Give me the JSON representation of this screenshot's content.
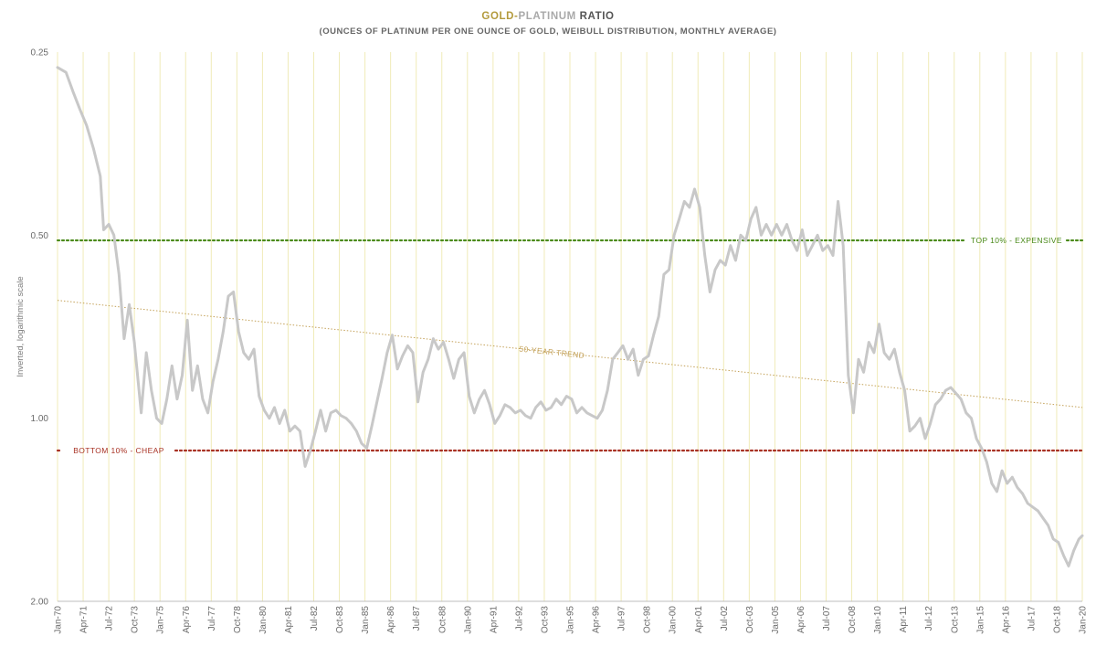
{
  "title": {
    "part1": "GOLD-",
    "part2": "PLATINUM",
    "part3": " RATIO"
  },
  "subtitle": "(OUNCES OF PLATINUM PER ONE OUNCE OF GOLD, WEIBULL DISTRIBUTION, MONTHLY AVERAGE)",
  "colors": {
    "gold": "#b39a3c",
    "platinum": "#a9a9a9",
    "ratio": "#555555",
    "series": "#c8c8c8",
    "top": "#4a8a1a",
    "bottom": "#a83224",
    "trend": "#c4a25a",
    "grid": "#f0ebb8"
  },
  "chart_data": {
    "type": "line",
    "ylabel": "Inverted, logarithmic scale",
    "y_scale": "log",
    "y_inverted": true,
    "ylim": [
      0.25,
      2.0
    ],
    "yticks": [
      0.25,
      0.5,
      1.0,
      2.0
    ],
    "ytick_labels": [
      "0.25",
      "0.50",
      "1.00",
      "2.00"
    ],
    "xlim": [
      "1970-01",
      "2020-01"
    ],
    "xtick_labels": [
      "Jan-70",
      "Apr-71",
      "Jul-72",
      "Oct-73",
      "Jan-75",
      "Apr-76",
      "Jul-77",
      "Oct-78",
      "Jan-80",
      "Apr-81",
      "Jul-82",
      "Oct-83",
      "Jan-85",
      "Apr-86",
      "Jul-87",
      "Oct-88",
      "Jan-90",
      "Apr-91",
      "Jul-92",
      "Oct-93",
      "Jan-95",
      "Apr-96",
      "Jul-97",
      "Oct-98",
      "Jan-00",
      "Apr-01",
      "Jul-02",
      "Oct-03",
      "Jan-05",
      "Apr-06",
      "Jul-07",
      "Oct-08",
      "Jan-10",
      "Apr-11",
      "Jul-12",
      "Oct-13",
      "Jan-15",
      "Apr-16",
      "Jul-17",
      "Oct-18",
      "Jan-20"
    ],
    "grid": "vertical",
    "series": [
      {
        "points": [
          [
            "1970-01",
            0.265
          ],
          [
            "1970-06",
            0.27
          ],
          [
            "1970-10",
            0.29
          ],
          [
            "1971-02",
            0.31
          ],
          [
            "1971-06",
            0.33
          ],
          [
            "1971-10",
            0.36
          ],
          [
            "1972-02",
            0.4
          ],
          [
            "1972-04",
            0.49
          ],
          [
            "1972-07",
            0.48
          ],
          [
            "1972-10",
            0.5
          ],
          [
            "1973-01",
            0.58
          ],
          [
            "1973-04",
            0.74
          ],
          [
            "1973-07",
            0.65
          ],
          [
            "1973-10",
            0.75
          ],
          [
            "1974-02",
            0.98
          ],
          [
            "1974-05",
            0.78
          ],
          [
            "1974-08",
            0.9
          ],
          [
            "1974-11",
            1.0
          ],
          [
            "1975-02",
            1.02
          ],
          [
            "1975-05",
            0.93
          ],
          [
            "1975-08",
            0.82
          ],
          [
            "1975-11",
            0.93
          ],
          [
            "1976-02",
            0.85
          ],
          [
            "1976-05",
            0.69
          ],
          [
            "1976-08",
            0.9
          ],
          [
            "1976-11",
            0.82
          ],
          [
            "1977-02",
            0.93
          ],
          [
            "1977-05",
            0.98
          ],
          [
            "1977-08",
            0.87
          ],
          [
            "1977-11",
            0.8
          ],
          [
            "1978-02",
            0.72
          ],
          [
            "1978-05",
            0.63
          ],
          [
            "1978-08",
            0.62
          ],
          [
            "1978-11",
            0.72
          ],
          [
            "1979-02",
            0.78
          ],
          [
            "1979-05",
            0.8
          ],
          [
            "1979-08",
            0.77
          ],
          [
            "1979-11",
            0.92
          ],
          [
            "1980-02",
            0.97
          ],
          [
            "1980-05",
            1.0
          ],
          [
            "1980-08",
            0.96
          ],
          [
            "1980-11",
            1.02
          ],
          [
            "1981-02",
            0.97
          ],
          [
            "1981-05",
            1.05
          ],
          [
            "1981-08",
            1.03
          ],
          [
            "1981-11",
            1.05
          ],
          [
            "1982-02",
            1.2
          ],
          [
            "1982-05",
            1.13
          ],
          [
            "1982-08",
            1.05
          ],
          [
            "1982-11",
            0.97
          ],
          [
            "1983-02",
            1.05
          ],
          [
            "1983-05",
            0.98
          ],
          [
            "1983-08",
            0.97
          ],
          [
            "1983-11",
            0.99
          ],
          [
            "1984-02",
            1.0
          ],
          [
            "1984-05",
            1.02
          ],
          [
            "1984-08",
            1.05
          ],
          [
            "1984-11",
            1.1
          ],
          [
            "1985-02",
            1.12
          ],
          [
            "1985-05",
            1.03
          ],
          [
            "1985-08",
            0.94
          ],
          [
            "1985-11",
            0.86
          ],
          [
            "1986-02",
            0.78
          ],
          [
            "1986-05",
            0.73
          ],
          [
            "1986-08",
            0.83
          ],
          [
            "1986-11",
            0.79
          ],
          [
            "1987-02",
            0.76
          ],
          [
            "1987-05",
            0.78
          ],
          [
            "1987-08",
            0.94
          ],
          [
            "1987-11",
            0.84
          ],
          [
            "1988-02",
            0.8
          ],
          [
            "1988-05",
            0.74
          ],
          [
            "1988-08",
            0.77
          ],
          [
            "1988-11",
            0.75
          ],
          [
            "1989-02",
            0.8
          ],
          [
            "1989-05",
            0.86
          ],
          [
            "1989-08",
            0.8
          ],
          [
            "1989-11",
            0.78
          ],
          [
            "1990-02",
            0.92
          ],
          [
            "1990-05",
            0.98
          ],
          [
            "1990-08",
            0.93
          ],
          [
            "1990-11",
            0.9
          ],
          [
            "1991-02",
            0.95
          ],
          [
            "1991-05",
            1.02
          ],
          [
            "1991-08",
            0.99
          ],
          [
            "1991-11",
            0.95
          ],
          [
            "1992-02",
            0.96
          ],
          [
            "1992-05",
            0.98
          ],
          [
            "1992-08",
            0.97
          ],
          [
            "1992-11",
            0.99
          ],
          [
            "1993-02",
            1.0
          ],
          [
            "1993-05",
            0.96
          ],
          [
            "1993-08",
            0.94
          ],
          [
            "1993-11",
            0.97
          ],
          [
            "1994-02",
            0.96
          ],
          [
            "1994-05",
            0.93
          ],
          [
            "1994-08",
            0.95
          ],
          [
            "1994-11",
            0.92
          ],
          [
            "1995-02",
            0.93
          ],
          [
            "1995-05",
            0.98
          ],
          [
            "1995-08",
            0.96
          ],
          [
            "1995-11",
            0.98
          ],
          [
            "1996-02",
            0.99
          ],
          [
            "1996-05",
            1.0
          ],
          [
            "1996-08",
            0.97
          ],
          [
            "1996-11",
            0.9
          ],
          [
            "1997-02",
            0.8
          ],
          [
            "1997-05",
            0.78
          ],
          [
            "1997-08",
            0.76
          ],
          [
            "1997-11",
            0.8
          ],
          [
            "1998-02",
            0.77
          ],
          [
            "1998-05",
            0.85
          ],
          [
            "1998-08",
            0.8
          ],
          [
            "1998-11",
            0.79
          ],
          [
            "1999-02",
            0.73
          ],
          [
            "1999-05",
            0.68
          ],
          [
            "1999-08",
            0.58
          ],
          [
            "1999-11",
            0.57
          ],
          [
            "2000-02",
            0.5
          ],
          [
            "2000-05",
            0.47
          ],
          [
            "2000-08",
            0.44
          ],
          [
            "2000-11",
            0.45
          ],
          [
            "2001-02",
            0.42
          ],
          [
            "2001-05",
            0.45
          ],
          [
            "2001-08",
            0.54
          ],
          [
            "2001-11",
            0.62
          ],
          [
            "2002-02",
            0.57
          ],
          [
            "2002-05",
            0.55
          ],
          [
            "2002-08",
            0.56
          ],
          [
            "2002-11",
            0.52
          ],
          [
            "2003-02",
            0.55
          ],
          [
            "2003-05",
            0.5
          ],
          [
            "2003-08",
            0.51
          ],
          [
            "2003-11",
            0.47
          ],
          [
            "2004-02",
            0.45
          ],
          [
            "2004-05",
            0.5
          ],
          [
            "2004-08",
            0.48
          ],
          [
            "2004-11",
            0.5
          ],
          [
            "2005-02",
            0.48
          ],
          [
            "2005-05",
            0.5
          ],
          [
            "2005-08",
            0.48
          ],
          [
            "2005-11",
            0.51
          ],
          [
            "2006-02",
            0.53
          ],
          [
            "2006-05",
            0.49
          ],
          [
            "2006-08",
            0.54
          ],
          [
            "2006-11",
            0.52
          ],
          [
            "2007-02",
            0.5
          ],
          [
            "2007-05",
            0.53
          ],
          [
            "2007-08",
            0.52
          ],
          [
            "2007-11",
            0.54
          ],
          [
            "2008-02",
            0.44
          ],
          [
            "2008-05",
            0.52
          ],
          [
            "2008-08",
            0.85
          ],
          [
            "2008-11",
            0.98
          ],
          [
            "2009-02",
            0.8
          ],
          [
            "2009-05",
            0.84
          ],
          [
            "2009-08",
            0.75
          ],
          [
            "2009-11",
            0.78
          ],
          [
            "2010-02",
            0.7
          ],
          [
            "2010-05",
            0.78
          ],
          [
            "2010-08",
            0.8
          ],
          [
            "2010-11",
            0.77
          ],
          [
            "2011-02",
            0.84
          ],
          [
            "2011-05",
            0.9
          ],
          [
            "2011-08",
            1.05
          ],
          [
            "2011-11",
            1.03
          ],
          [
            "2012-02",
            1.0
          ],
          [
            "2012-05",
            1.08
          ],
          [
            "2012-08",
            1.02
          ],
          [
            "2012-11",
            0.95
          ],
          [
            "2013-02",
            0.93
          ],
          [
            "2013-05",
            0.9
          ],
          [
            "2013-08",
            0.89
          ],
          [
            "2013-11",
            0.91
          ],
          [
            "2014-02",
            0.93
          ],
          [
            "2014-05",
            0.98
          ],
          [
            "2014-08",
            1.0
          ],
          [
            "2014-11",
            1.08
          ],
          [
            "2015-02",
            1.12
          ],
          [
            "2015-05",
            1.18
          ],
          [
            "2015-08",
            1.28
          ],
          [
            "2015-11",
            1.32
          ],
          [
            "2016-02",
            1.22
          ],
          [
            "2016-05",
            1.28
          ],
          [
            "2016-08",
            1.25
          ],
          [
            "2016-11",
            1.3
          ],
          [
            "2017-02",
            1.33
          ],
          [
            "2017-05",
            1.38
          ],
          [
            "2017-08",
            1.4
          ],
          [
            "2017-11",
            1.42
          ],
          [
            "2018-02",
            1.46
          ],
          [
            "2018-05",
            1.5
          ],
          [
            "2018-08",
            1.58
          ],
          [
            "2018-11",
            1.6
          ],
          [
            "2019-02",
            1.68
          ],
          [
            "2019-05",
            1.75
          ],
          [
            "2019-08",
            1.65
          ],
          [
            "2019-11",
            1.58
          ],
          [
            "2020-01",
            1.56
          ]
        ]
      }
    ],
    "annotations": [
      {
        "label": "TOP 10% - EXPENSIVE",
        "y": 0.51
      },
      {
        "label": "BOTTOM 10% - CHEAP",
        "y": 1.13
      },
      {
        "label": "50-YEAR TREND",
        "from": [
          "1970-01",
          0.64
        ],
        "to": [
          "2020-01",
          0.96
        ]
      }
    ]
  }
}
